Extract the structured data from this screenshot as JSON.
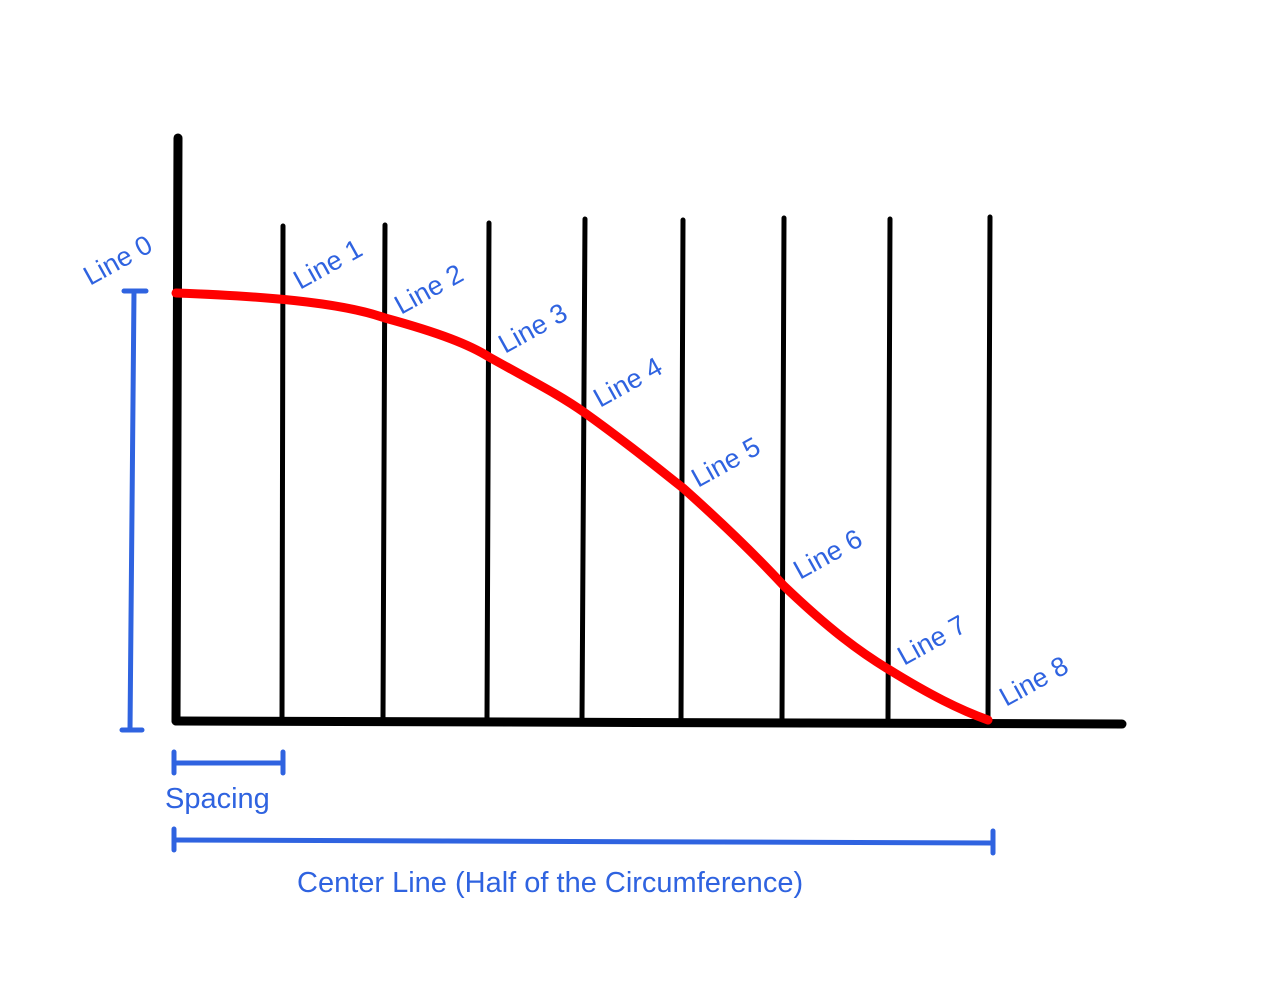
{
  "labels": {
    "lines": [
      "Line 0",
      "Line 1",
      "Line 2",
      "Line 3",
      "Line 4",
      "Line 5",
      "Line 6",
      "Line 7",
      "Line 8"
    ],
    "spacing": "Spacing",
    "center_line": "Center Line (Half of the Circumference)"
  },
  "colors": {
    "axis": "#000000",
    "grid_lines": "#000000",
    "curve": "#ff0000",
    "annotation": "#2f63e0"
  }
}
